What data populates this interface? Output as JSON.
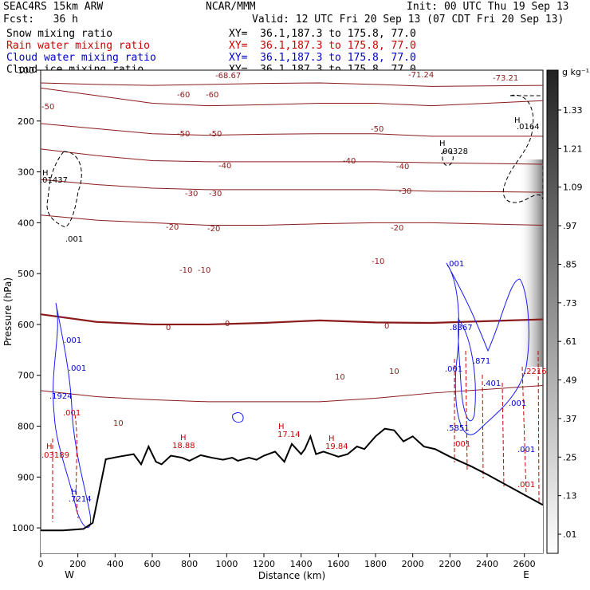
{
  "header": {
    "model": "SEAC4RS 15km ARW",
    "center": "NCAR/MMM",
    "init": "Init: 00 UTC Thu 19 Sep 13",
    "fcst": "Fcst:   36 h",
    "valid": "Valid: 12 UTC Fri 20 Sep 13 (07 CDT Fri 20 Sep 13)"
  },
  "fields": [
    {
      "label": "Snow mixing ratio",
      "xy": "XY=  36.1,187.3 to 175.8, 77.0",
      "color": "#000000"
    },
    {
      "label": "Rain water mixing ratio",
      "xy": "XY=  36.1,187.3 to 175.8, 77.0",
      "color": "#cc0000"
    },
    {
      "label": "Cloud water mixing ratio",
      "xy": "XY=  36.1,187.3 to 175.8, 77.0",
      "color": "#0000cc"
    },
    {
      "label": "Cloud ice mixing ratio",
      "xy": "XY=  36.1,187.3 to 175.8, 77.0",
      "color": "#000000"
    }
  ],
  "colorbar": {
    "unit": "g kg⁻¹",
    "levels": [
      "1.33",
      "1.21",
      "1.09",
      ".97",
      ".85",
      ".73",
      ".61",
      ".49",
      ".37",
      ".25",
      ".13",
      ".01"
    ]
  },
  "chart_data": {
    "type": "heatmap",
    "title": "",
    "xlabel": "Distance (km)",
    "ylabel": "Pressure (hPa)",
    "xlim": [
      0,
      2700
    ],
    "ylim": [
      1050,
      100
    ],
    "x_ticks": [
      "0",
      "200",
      "400",
      "600",
      "800",
      "1000",
      "1200",
      "1400",
      "1600",
      "1800",
      "2000",
      "2200",
      "2400",
      "2600"
    ],
    "y_ticks": [
      "100",
      "200",
      "300",
      "400",
      "500",
      "600",
      "700",
      "800",
      "900",
      "1000"
    ],
    "x_ends": {
      "left": "W",
      "right": "E"
    },
    "temperature_contours": [
      {
        "value": -60,
        "p": [
          125,
          128,
          130,
          128,
          126,
          125,
          128,
          132,
          130
        ]
      },
      {
        "value": -50,
        "p": [
          135,
          150,
          165,
          170,
          168,
          165,
          165,
          170,
          160
        ]
      },
      {
        "value": -40,
        "p": [
          205,
          215,
          225,
          228,
          226,
          225,
          225,
          230,
          230
        ]
      },
      {
        "value": -30,
        "p": [
          255,
          268,
          278,
          280,
          280,
          280,
          280,
          282,
          285
        ]
      },
      {
        "value": -20,
        "p": [
          315,
          325,
          332,
          335,
          335,
          335,
          335,
          338,
          340
        ]
      },
      {
        "value": -10,
        "p": [
          385,
          395,
          400,
          405,
          405,
          402,
          400,
          400,
          405
        ]
      },
      {
        "value": 0,
        "p": [
          580,
          595,
          600,
          600,
          597,
          592,
          596,
          597,
          590
        ]
      },
      {
        "value": 10,
        "p": [
          730,
          742,
          748,
          752,
          752,
          752,
          745,
          735,
          720
        ]
      }
    ],
    "contour_x": [
      0,
      300,
      600,
      900,
      1200,
      1500,
      1800,
      2100,
      2700
    ],
    "contour_labels": [
      "-60",
      "-60",
      "-50",
      "-50",
      "-50",
      "-40",
      "-40",
      "-40",
      "-30",
      "-30",
      "-30",
      "-20",
      "-20",
      "-20",
      "-10",
      "-10",
      "-10",
      "0",
      "0",
      "0",
      "10",
      "10",
      "10",
      "-68.67",
      "-71.24",
      "-73.21",
      "-50"
    ],
    "terrain": {
      "x": [
        0,
        120,
        230,
        280,
        350,
        420,
        500,
        540,
        580,
        620,
        650,
        700,
        760,
        800,
        860,
        920,
        980,
        1030,
        1060,
        1120,
        1160,
        1200,
        1260,
        1310,
        1350,
        1400,
        1420,
        1450,
        1480,
        1520,
        1560,
        1600,
        1650,
        1700,
        1740,
        1800,
        1850,
        1900,
        1950,
        2000,
        2060,
        2120,
        2200,
        2260,
        2320,
        2400,
        2500,
        2600,
        2700
      ],
      "p": [
        1005,
        1005,
        1002,
        990,
        865,
        860,
        855,
        875,
        840,
        870,
        875,
        858,
        862,
        868,
        857,
        862,
        866,
        862,
        868,
        862,
        866,
        858,
        850,
        870,
        835,
        855,
        845,
        820,
        855,
        850,
        855,
        860,
        855,
        840,
        845,
        820,
        805,
        808,
        830,
        820,
        840,
        845,
        860,
        870,
        880,
        895,
        915,
        935,
        955
      ]
    },
    "extrema_labels": [
      {
        "text": "H",
        "color": "#000000"
      },
      {
        "text": ".01437",
        "color": "#000000"
      },
      {
        "text": ".001",
        "color": "#000000"
      },
      {
        "text": "H",
        "color": "#000000"
      },
      {
        "text": ".00328",
        "color": "#000000"
      },
      {
        "text": "H",
        "color": "#000000"
      },
      {
        "text": ".0164",
        "color": "#000000"
      },
      {
        "text": "H",
        "color": "#cc0000"
      },
      {
        "text": "18.88",
        "color": "#cc0000"
      },
      {
        "text": "H",
        "color": "#cc0000"
      },
      {
        "text": "17.14",
        "color": "#cc0000"
      },
      {
        "text": "H",
        "color": "#cc0000"
      },
      {
        "text": "19.84",
        "color": "#cc0000"
      },
      {
        "text": "H",
        "color": "#cc0000"
      },
      {
        "text": ".03189",
        "color": "#cc0000"
      },
      {
        "text": ".001",
        "color": "#cc0000"
      },
      {
        "text": ".001",
        "color": "#cc0000"
      },
      {
        "text": ".2216",
        "color": "#cc0000"
      },
      {
        "text": ".001",
        "color": "#cc0000"
      },
      {
        "text": "H",
        "color": "#0000cc"
      },
      {
        "text": ".7214",
        "color": "#0000cc"
      },
      {
        "text": ".1924",
        "color": "#0000cc"
      },
      {
        "text": ".001",
        "color": "#0000cc"
      },
      {
        "text": ".001",
        "color": "#0000cc"
      },
      {
        "text": ".8367",
        "color": "#0000cc"
      },
      {
        "text": ".871",
        "color": "#0000cc"
      },
      {
        "text": ".401",
        "color": "#0000cc"
      },
      {
        "text": ".001",
        "color": "#0000cc"
      },
      {
        "text": ".001",
        "color": "#0000cc"
      },
      {
        "text": ".001",
        "color": "#0000cc"
      },
      {
        "text": ".001",
        "color": "#0000cc"
      },
      {
        "text": ".5851",
        "color": "#0000cc"
      }
    ]
  }
}
